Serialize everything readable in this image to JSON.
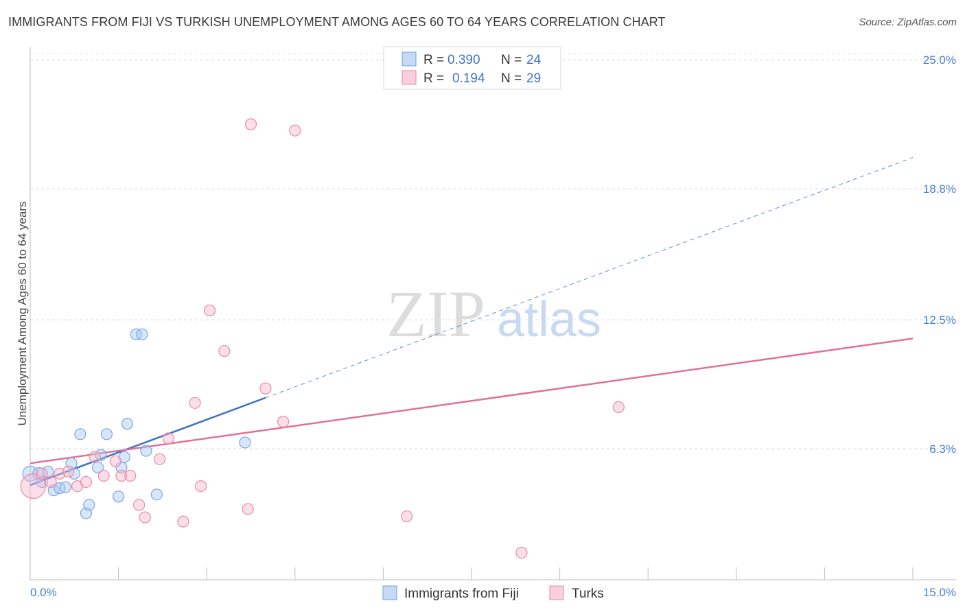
{
  "header": {
    "title": "IMMIGRANTS FROM FIJI VS TURKISH UNEMPLOYMENT AMONG AGES 60 TO 64 YEARS CORRELATION CHART",
    "source": "Source: ZipAtlas.com"
  },
  "watermark": {
    "zip": "ZIP",
    "atlas": "atlas"
  },
  "chart_data": {
    "type": "scatter",
    "title": "IMMIGRANTS FROM FIJI VS TURKISH UNEMPLOYMENT AMONG AGES 60 TO 64 YEARS CORRELATION CHART",
    "xlabel": "",
    "ylabel": "Unemployment Among Ages 60 to 64 years",
    "xlim": [
      0,
      15
    ],
    "ylim": [
      0,
      25.5
    ],
    "x_tick_labels": {
      "min": "0.0%",
      "max": "15.0%"
    },
    "y_ticks": [
      {
        "value": 25.0,
        "label": "25.0%"
      },
      {
        "value": 18.8,
        "label": "18.8%"
      },
      {
        "value": 12.5,
        "label": "12.5%"
      },
      {
        "value": 6.3,
        "label": "6.3%"
      }
    ],
    "legend": {
      "placement": "top-center",
      "rows": [
        {
          "r_label": "R =",
          "r_value": "0.390",
          "n_label": "N =",
          "n_value": "24",
          "color": "#a9c8f2",
          "stroke": "#6f9fe0"
        },
        {
          "r_label": "R =",
          "r_value": "0.194",
          "n_label": "N =",
          "n_value": "29",
          "color": "#f7b9cc",
          "stroke": "#e98aa8"
        }
      ]
    },
    "series": [
      {
        "name": "Immigrants from Fiji",
        "fill": "rgba(169,200,242,0.45)",
        "stroke": "#7aa6e0",
        "line_color": "#3a72c9",
        "trend_solid": {
          "x": [
            0.0,
            4.0
          ],
          "y": [
            4.55,
            8.75
          ]
        },
        "trend_dashed": {
          "x": [
            4.0,
            15.0
          ],
          "y": [
            8.75,
            20.3
          ]
        },
        "points": [
          {
            "x": 0.0,
            "y": 5.1,
            "r": 11
          },
          {
            "x": 0.15,
            "y": 5.1,
            "r": 9
          },
          {
            "x": 0.2,
            "y": 4.7,
            "r": 8
          },
          {
            "x": 0.3,
            "y": 5.2,
            "r": 8
          },
          {
            "x": 0.4,
            "y": 4.3,
            "r": 8
          },
          {
            "x": 0.5,
            "y": 4.4,
            "r": 8
          },
          {
            "x": 0.6,
            "y": 4.45,
            "r": 8
          },
          {
            "x": 0.7,
            "y": 5.6,
            "r": 8
          },
          {
            "x": 0.75,
            "y": 5.1,
            "r": 8
          },
          {
            "x": 0.85,
            "y": 7.0,
            "r": 8
          },
          {
            "x": 0.95,
            "y": 3.2,
            "r": 8
          },
          {
            "x": 1.0,
            "y": 3.6,
            "r": 8
          },
          {
            "x": 1.15,
            "y": 5.4,
            "r": 8
          },
          {
            "x": 1.2,
            "y": 6.0,
            "r": 8
          },
          {
            "x": 1.3,
            "y": 7.0,
            "r": 8
          },
          {
            "x": 1.5,
            "y": 4.0,
            "r": 8
          },
          {
            "x": 1.55,
            "y": 5.4,
            "r": 8
          },
          {
            "x": 1.6,
            "y": 5.9,
            "r": 8
          },
          {
            "x": 1.65,
            "y": 7.5,
            "r": 8
          },
          {
            "x": 1.8,
            "y": 11.8,
            "r": 8
          },
          {
            "x": 1.9,
            "y": 11.8,
            "r": 8
          },
          {
            "x": 1.97,
            "y": 6.2,
            "r": 8
          },
          {
            "x": 2.15,
            "y": 4.1,
            "r": 8
          },
          {
            "x": 3.65,
            "y": 6.6,
            "r": 8
          }
        ]
      },
      {
        "name": "Turks",
        "fill": "rgba(247,185,204,0.45)",
        "stroke": "#e98aa8",
        "line_color": "#e0709a",
        "trend_solid": {
          "x": [
            0.0,
            15.0
          ],
          "y": [
            5.6,
            11.6
          ]
        },
        "points": [
          {
            "x": 0.05,
            "y": 4.5,
            "r": 18
          },
          {
            "x": 0.2,
            "y": 5.1,
            "r": 8
          },
          {
            "x": 0.35,
            "y": 4.7,
            "r": 8
          },
          {
            "x": 0.5,
            "y": 5.1,
            "r": 8
          },
          {
            "x": 0.65,
            "y": 5.2,
            "r": 8
          },
          {
            "x": 0.8,
            "y": 4.5,
            "r": 8
          },
          {
            "x": 0.95,
            "y": 4.7,
            "r": 8
          },
          {
            "x": 1.1,
            "y": 5.9,
            "r": 8
          },
          {
            "x": 1.25,
            "y": 5.0,
            "r": 8
          },
          {
            "x": 1.45,
            "y": 5.7,
            "r": 8
          },
          {
            "x": 1.55,
            "y": 5.0,
            "r": 8
          },
          {
            "x": 1.7,
            "y": 5.0,
            "r": 8
          },
          {
            "x": 1.85,
            "y": 3.6,
            "r": 8
          },
          {
            "x": 1.95,
            "y": 3.0,
            "r": 8
          },
          {
            "x": 2.2,
            "y": 5.8,
            "r": 8
          },
          {
            "x": 2.35,
            "y": 6.8,
            "r": 8
          },
          {
            "x": 2.6,
            "y": 2.8,
            "r": 8
          },
          {
            "x": 2.8,
            "y": 8.5,
            "r": 8
          },
          {
            "x": 2.9,
            "y": 4.5,
            "r": 8
          },
          {
            "x": 3.05,
            "y": 12.95,
            "r": 8
          },
          {
            "x": 3.3,
            "y": 11.0,
            "r": 8
          },
          {
            "x": 3.7,
            "y": 3.4,
            "r": 8
          },
          {
            "x": 3.75,
            "y": 21.9,
            "r": 8
          },
          {
            "x": 4.0,
            "y": 9.2,
            "r": 8
          },
          {
            "x": 4.3,
            "y": 7.6,
            "r": 8
          },
          {
            "x": 4.5,
            "y": 21.6,
            "r": 8
          },
          {
            "x": 6.4,
            "y": 3.05,
            "r": 8
          },
          {
            "x": 8.35,
            "y": 1.3,
            "r": 8
          },
          {
            "x": 10.0,
            "y": 8.3,
            "r": 8
          }
        ]
      }
    ]
  }
}
